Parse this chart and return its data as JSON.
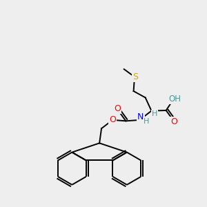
{
  "bg_color": "#eeeeee",
  "atom_colors": {
    "C": "#000000",
    "H": "#4a9999",
    "N": "#0000ff",
    "O": "#ff0000",
    "S": "#ccaa00"
  },
  "bond_color": "#000000",
  "figsize": [
    3.0,
    3.0
  ],
  "dpi": 100,
  "bond_lw": 1.4
}
